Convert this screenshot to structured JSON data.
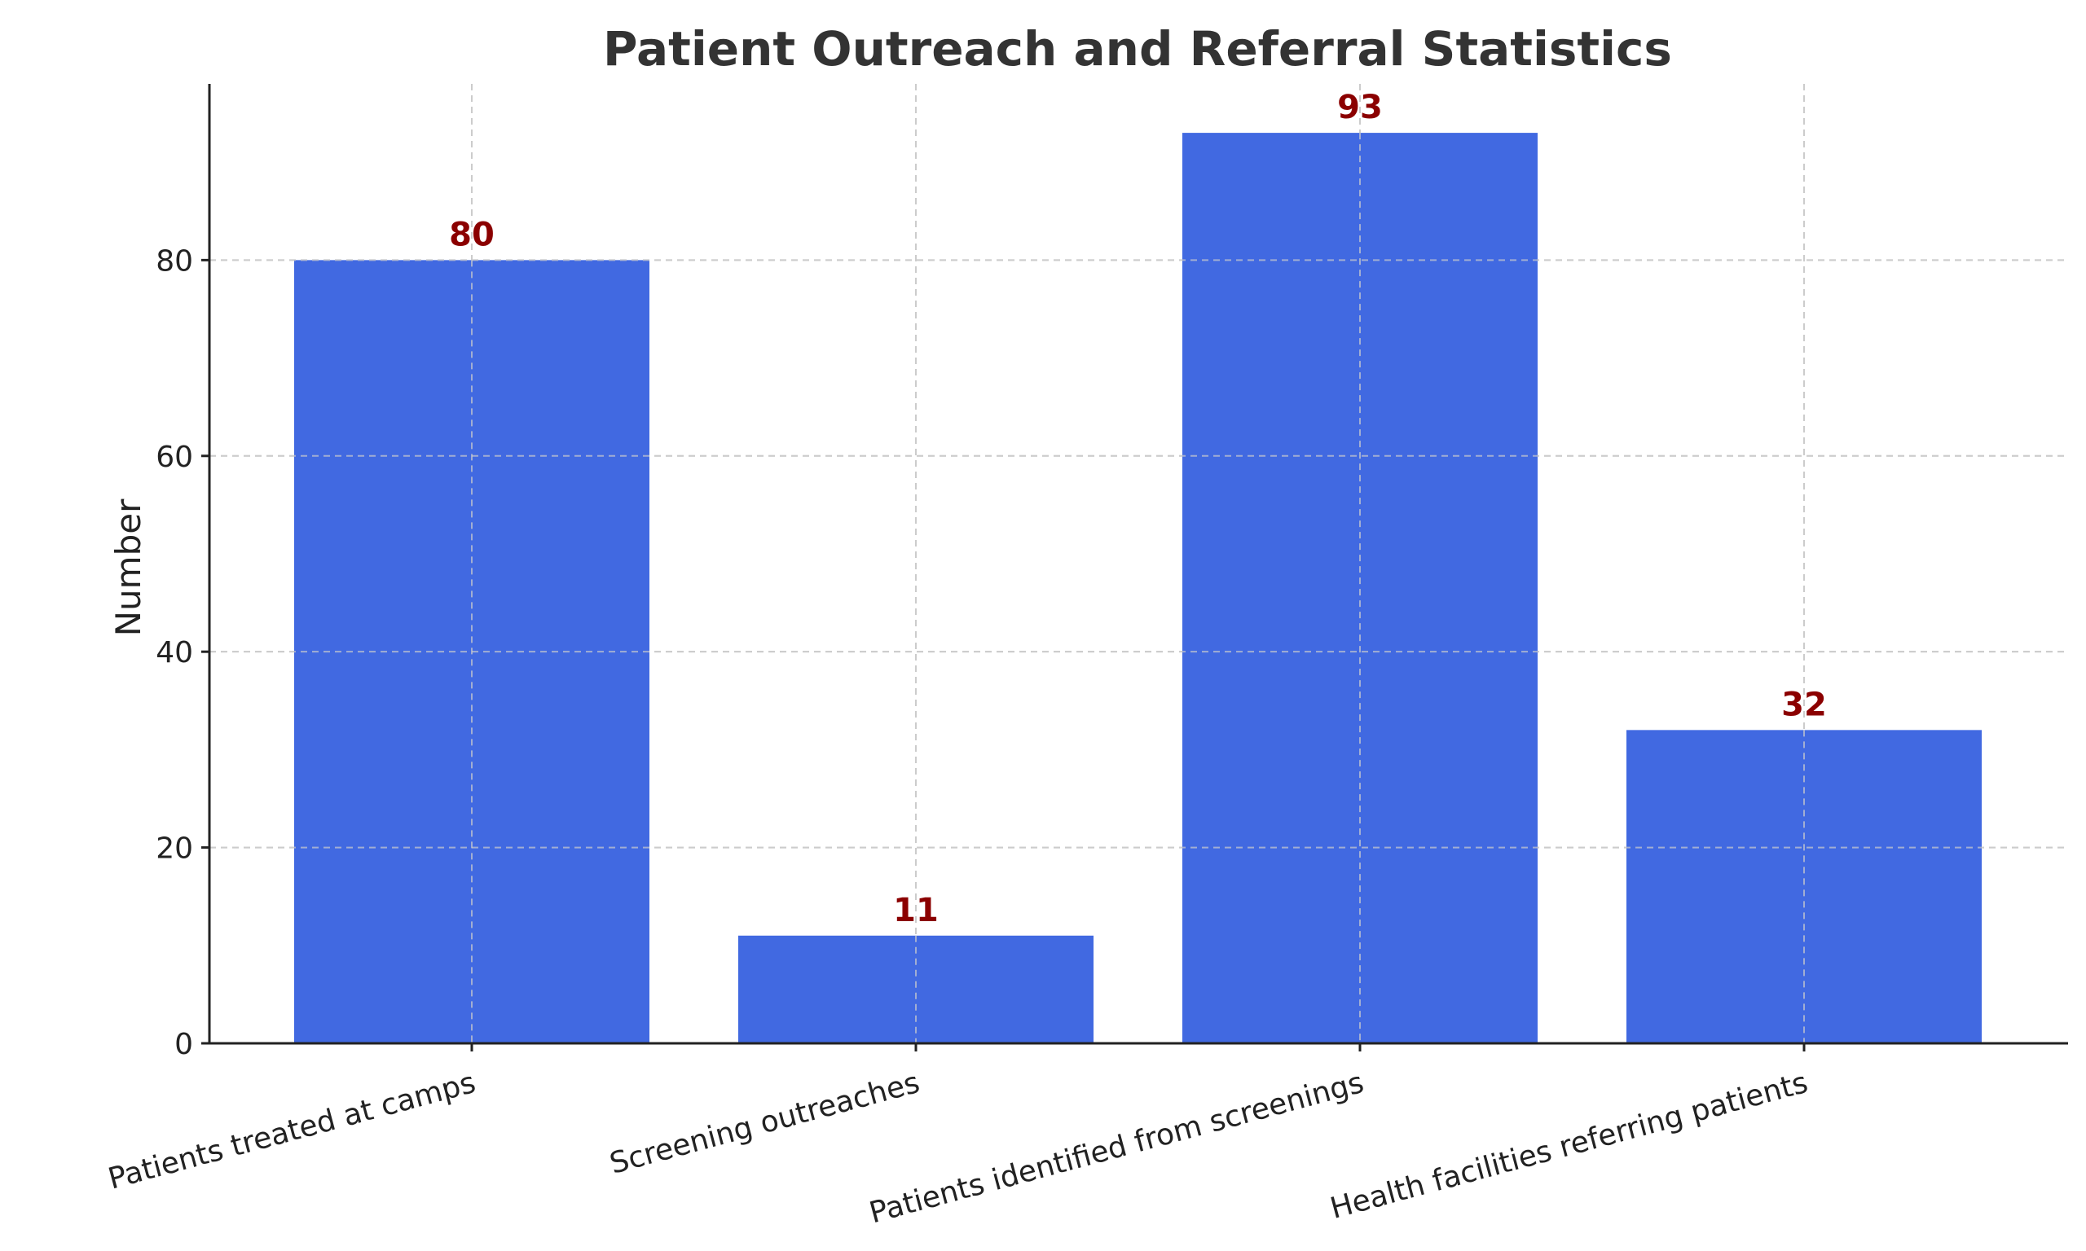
{
  "chart_data": {
    "type": "bar",
    "title": "Patient Outreach and Referral Statistics",
    "xlabel": "",
    "ylabel": "Number",
    "categories": [
      "Patients treated at camps",
      "Screening outreaches",
      "Patients identified from screenings",
      "Health facilities referring patients"
    ],
    "values": [
      80,
      11,
      93,
      32
    ],
    "data_labels": [
      "80",
      "11",
      "93",
      "32"
    ],
    "ylim": [
      0,
      98
    ],
    "yticks": [
      0,
      20,
      40,
      60,
      80
    ],
    "ytick_labels": [
      "0",
      "20",
      "40",
      "60",
      "80"
    ],
    "grid": true,
    "bar_color": "#4169E1",
    "data_label_color": "#8B0000",
    "grid_color": "#cccccc"
  }
}
